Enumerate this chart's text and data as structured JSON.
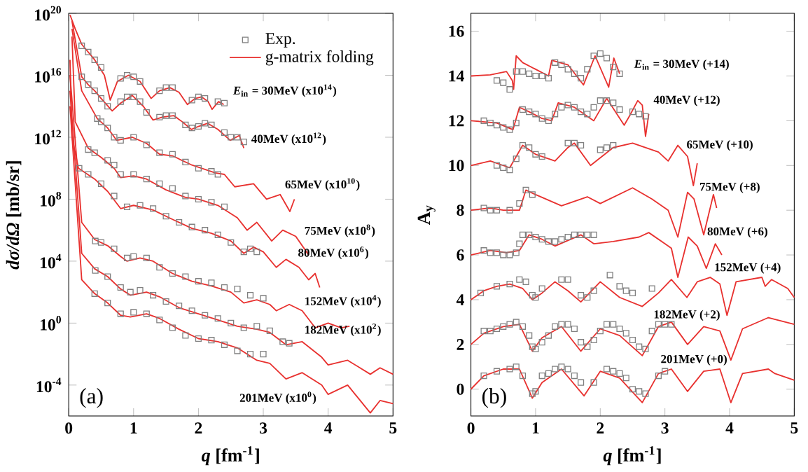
{
  "chart_data": [
    {
      "type": "line",
      "log": "y",
      "xlabel": "*q* [fm$^{-1}$]",
      "ylabel": "*dσ/dΩ* [mb/sr]",
      "xlim": [
        0,
        5
      ],
      "ylim": [
        1e-06,
        1e+20
      ],
      "xticks": [
        0,
        1,
        2,
        3,
        4,
        5
      ],
      "yticks": [
        {
          "value": 0.0001,
          "label": "10$^{-4}$"
        },
        {
          "value": 1,
          "label": "10$^{0}$"
        },
        {
          "value": 10000.0,
          "label": "10$^{4}$"
        },
        {
          "value": 100000000.0,
          "label": "10$^{8}$"
        },
        {
          "value": 1000000000000.0,
          "label": "10$^{12}$"
        },
        {
          "value": 1e+16,
          "label": "10$^{16}$"
        },
        {
          "value": 1e+20,
          "label": "10$^{20}$"
        }
      ],
      "legend": "top right",
      "series": [
        {
          "name": "Exp.",
          "type": "scatter",
          "marker": "square",
          "color": "#808080",
          "x": [
            0.2,
            0.3,
            0.4,
            0.5,
            0.8,
            0.9,
            1.0,
            1.1,
            1.4,
            1.5,
            1.6,
            1.9,
            2.0,
            2.1,
            2.3,
            2.4
          ],
          "values": [
            8e+17,
            3.2e+17,
            1e+17,
            3.2e+16,
            6300000000000000.0,
            1e+16,
            8000000000000000.0,
            4000000000000000.0,
            1000000000000000.0,
            1600000000000000.0,
            1600000000000000.0,
            250000000000000.0,
            400000000000000.0,
            320000000000000.0,
            200000000000000.0,
            160000000000000.0
          ]
        },
        {
          "name": "g-matrix folding",
          "type": "line",
          "color": "#e8312f",
          "x": [
            0.02,
            0.1,
            0.2,
            0.4,
            0.55,
            0.64,
            0.75,
            0.92,
            1.1,
            1.27,
            1.4,
            1.56,
            1.7,
            1.83,
            1.95,
            2.05,
            2.15,
            2.21,
            2.31,
            2.39
          ],
          "values": [
            8e+19,
            1e+19,
            1e+18,
            1e+17,
            1e+16,
            250000000000000.0,
            4000000000000000.0,
            1e+16,
            4000000000000000.0,
            320000000000000.0,
            1000000000000000.0,
            1600000000000000.0,
            800000000000000.0,
            130000000000000.0,
            320000000000000.0,
            400000000000000.0,
            200000000000000.0,
            63000000000000.0,
            200000000000000.0,
            130000000000000.0
          ]
        },
        {
          "type": "scatter",
          "marker": "square",
          "color": "#808080",
          "x": [
            0.2,
            0.3,
            0.4,
            0.5,
            0.6,
            0.8,
            0.9,
            1.0,
            1.1,
            1.2,
            1.4,
            1.5,
            1.6,
            1.8,
            1.9,
            2.0,
            2.1,
            2.2,
            2.4,
            2.5,
            2.6,
            2.7
          ],
          "values": [
            8000000000000000.0,
            2500000000000000.0,
            1000000000000000.0,
            320000000000000.0,
            100000000000000.0,
            200000000000000.0,
            400000000000000.0,
            400000000000000.0,
            200000000000000.0,
            40000000000000.0,
            20000000000000.0,
            25000000000000.0,
            25000000000000.0,
            6300000000000.0,
            4000000000000.0,
            5000000000000.0,
            8000000000000.0,
            6300000000000.0,
            2000000000000.0,
            1000000000000.0,
            1000000000000.0,
            500000000000.0
          ]
        },
        {
          "type": "line",
          "color": "#e8312f",
          "x": [
            0.05,
            0.2,
            0.3,
            0.4,
            0.5,
            0.67,
            0.8,
            0.98,
            1.15,
            1.3,
            1.45,
            1.62,
            1.75,
            1.89,
            2.0,
            2.14,
            2.3,
            2.49,
            2.63,
            2.7
          ],
          "values": [
            3.2e+19,
            8000000000000000.0,
            2500000000000000.0,
            1000000000000000.0,
            320000000000000.0,
            50000000000000.0,
            160000000000000.0,
            500000000000000.0,
            100000000000000.0,
            13000000000000.0,
            20000000000000.0,
            25000000000000.0,
            10000000000000.0,
            3200000000000.0,
            5000000000000.0,
            8000000000000.0,
            3200000000000.0,
            630000000000.0,
            1300000000000.0,
            200000000000.0
          ]
        },
        {
          "type": "scatter",
          "marker": "square",
          "color": "#808080",
          "x": [
            0.44,
            0.5,
            0.6,
            0.7,
            0.8,
            1.0,
            1.2,
            1.4,
            1.6,
            1.8,
            2.0,
            2.2,
            2.3
          ],
          "values": [
            16000000000000.0,
            10000000000000.0,
            4000000000000.0,
            1000000000000.0,
            630000000000.0,
            1000000000000.0,
            320000000000.0,
            100000000000.0,
            80000000000.0,
            25000000000.0,
            10000000000.0,
            6300000000.0,
            4000000000.0
          ]
        },
        {
          "type": "line",
          "color": "#e8312f",
          "x": [
            0.05,
            0.2,
            0.44,
            0.6,
            0.74,
            0.98,
            1.2,
            1.4,
            1.6,
            1.9,
            2.26,
            2.4,
            2.56,
            2.85,
            3.05,
            3.26,
            3.41,
            3.48
          ],
          "values": [
            1e+19,
            1000000000000000.0,
            16000000000000.0,
            4000000000000.0,
            630000000000.0,
            1000000000000.0,
            400000000000.0,
            80000000000.0,
            63000000000.0,
            16000000000.0,
            5000000000.0,
            4000000000.0,
            630000000.0,
            1000000000.0,
            100000000.0,
            200000000.0,
            16000000.0,
            100000000.0
          ]
        },
        {
          "type": "scatter",
          "marker": "square",
          "color": "#808080",
          "x": [
            0.3,
            0.4,
            0.6,
            0.7,
            0.8,
            1.0,
            1.2,
            1.4,
            1.6,
            1.8,
            2.0,
            2.2,
            2.4
          ],
          "values": [
            160000000000.0,
            100000000000.0,
            32000000000.0,
            16000000000.0,
            4000000000.0,
            4000000000.0,
            2000000000.0,
            1000000000.0,
            500000000.0,
            160000000.0,
            100000000.0,
            63000000.0,
            32000000.0
          ]
        },
        {
          "type": "line",
          "color": "#e8312f",
          "x": [
            0.05,
            0.1,
            0.3,
            0.5,
            0.7,
            0.8,
            1.0,
            1.2,
            1.5,
            1.8,
            2.0,
            2.3,
            2.6,
            2.75,
            2.9,
            3.13,
            3.3,
            3.5,
            3.7
          ],
          "values": [
            3.2e+18,
            10000000000000.0,
            200000000000.0,
            50000000000.0,
            10000000000.0,
            2500000000.0,
            3200000000.0,
            2000000000.0,
            400000000.0,
            130000000.0,
            100000000.0,
            40000000.0,
            6300000.0,
            1000000.0,
            3200000.0,
            200000.0,
            1000000.0,
            400000.0,
            25000.0
          ]
        },
        {
          "type": "scatter",
          "marker": "square",
          "color": "#808080",
          "x": [
            0.16,
            0.3,
            0.5,
            0.7,
            0.9,
            1.1,
            1.3,
            1.5,
            1.7,
            1.9,
            2.1,
            2.3,
            2.5,
            2.7,
            2.8,
            2.9
          ],
          "values": [
            10000000000.0,
            4000000000.0,
            1000000000.0,
            160000000.0,
            32000000.0,
            40000000.0,
            25000000.0,
            8000000.0,
            3200000.0,
            1600000.0,
            1000000.0,
            500000.0,
            160000.0,
            40000.0,
            63000.0,
            40000.0
          ]
        },
        {
          "type": "line",
          "color": "#e8312f",
          "x": [
            0.02,
            0.05,
            0.15,
            0.4,
            0.6,
            0.8,
            1.0,
            1.3,
            1.6,
            1.9,
            2.2,
            2.5,
            2.7,
            2.85,
            3.0,
            3.2,
            3.35,
            3.55,
            3.7,
            3.8,
            3.87
          ],
          "values": [
            1e+17,
            1000000000000.0,
            10000000000.0,
            2000000000.0,
            320000000.0,
            25000000.0,
            40000000.0,
            20000000.0,
            5000000.0,
            1300000.0,
            630000.0,
            200000.0,
            32000.0,
            80000.0,
            40000.0,
            4000.0,
            13000.0,
            4000.0,
            630.0,
            1600.0,
            200.0
          ]
        },
        {
          "type": "scatter",
          "marker": "square",
          "color": "#808080",
          "x": [
            0.41,
            0.5,
            0.7,
            0.9,
            1.0,
            1.2,
            1.4,
            1.6,
            1.8,
            2.0,
            2.2,
            2.4,
            2.6,
            2.8,
            3.0
          ],
          "values": [
            200000.0,
            160000.0,
            63000.0,
            16000.0,
            20000.0,
            16000.0,
            4000.0,
            1600.0,
            1000.0,
            500.0,
            400.0,
            200.0,
            160.0,
            63.0,
            40.0
          ]
        },
        {
          "type": "line",
          "color": "#e8312f",
          "x": [
            0.02,
            0.2,
            0.4,
            0.6,
            0.8,
            0.9,
            1.1,
            1.3,
            1.6,
            1.9,
            2.2,
            2.5,
            2.7,
            2.9,
            3.1,
            3.2,
            3.4,
            3.6,
            3.8,
            4.0,
            4.2,
            4.33
          ],
          "values": [
            1e+16,
            3200000.0,
            250000.0,
            100000.0,
            20000.0,
            10000.0,
            16000.0,
            10000.0,
            1600.0,
            500.0,
            250.0,
            100.0,
            20.0,
            32.0,
            16.0,
            6.3,
            16.0,
            6.3,
            0.5,
            1,
            0.5,
            0.63
          ]
        },
        {
          "type": "scatter",
          "marker": "square",
          "color": "#808080",
          "x": [
            0.41,
            0.6,
            0.8,
            0.95,
            1.1,
            1.3,
            1.5,
            1.7,
            1.9,
            2.1,
            2.3,
            2.5,
            2.7,
            2.9,
            3.1,
            3.3,
            3.4
          ],
          "values": [
            2500.0,
            1000.0,
            200.0,
            100.0,
            130.0,
            63.0,
            25.0,
            13.0,
            6.3,
            3.2,
            2,
            1,
            0.5,
            0.63,
            0.32,
            0.063,
            0.05
          ]
        },
        {
          "type": "line",
          "color": "#e8312f",
          "x": [
            0.02,
            0.2,
            0.4,
            0.6,
            0.8,
            0.95,
            1.2,
            1.4,
            1.7,
            2.0,
            2.3,
            2.6,
            2.9,
            3.1,
            3.35,
            3.6,
            3.9,
            4.0,
            4.3,
            4.65,
            4.8,
            5.0
          ],
          "values": [
            1000000000000000.0,
            32000.0,
            3200.0,
            1000.0,
            160.0,
            63.0,
            100.0,
            50.0,
            10.0,
            4,
            1.6,
            0.63,
            0.4,
            0.25,
            0.04,
            0.063,
            0.0063,
            0.002,
            0.004,
            0.0005,
            0.0013,
            0.0005
          ]
        },
        {
          "type": "scatter",
          "marker": "square",
          "color": "#808080",
          "x": [
            0.4,
            0.6,
            0.8,
            1.0,
            1.2,
            1.4,
            1.6,
            1.8,
            2.0,
            2.2,
            2.4,
            2.6,
            2.8,
            3.0
          ],
          "values": [
            80.0,
            20.0,
            4,
            5,
            4,
            1.6,
            0.5,
            0.16,
            0.1,
            0.08,
            0.04,
            0.016,
            0.01,
            0.01
          ]
        },
        {
          "type": "line",
          "color": "#e8312f",
          "x": [
            0.02,
            0.2,
            0.4,
            0.6,
            0.8,
            0.95,
            1.2,
            1.4,
            1.7,
            2.0,
            2.3,
            2.6,
            2.9,
            3.1,
            3.35,
            3.6,
            3.9,
            4.0,
            4.3,
            4.65,
            4.8,
            5.0
          ],
          "values": [
            100000000000000.0,
            630.0,
            80.0,
            20.0,
            3.2,
            2.5,
            4,
            2,
            0.4,
            0.1,
            0.063,
            0.025,
            0.004,
            0.0025,
            0.00025,
            0.00063,
            0.0001,
            2.5e-05,
            0.0001,
            1.6e-06,
            1e-05,
            6.3e-06
          ]
        }
      ],
      "annotations": [
        "*E*$_{in}$ = 30MeV (x10$^{14}$)",
        "40MeV (x10$^{12}$)",
        "65MeV (x10$^{10}$)",
        "75MeV (x10$^{8}$)",
        "80MeV (x10$^{6}$)",
        "152MeV (x10$^{4}$)",
        "182MeV (x10$^{2}$)",
        "201MeV (x10$^{0}$)",
        "(a)"
      ]
    },
    {
      "type": "line",
      "xlabel": "*q* [fm$^{-1}$]",
      "ylabel": "A$_{y}$",
      "xlim": [
        0,
        5
      ],
      "ylim": [
        -1.2,
        16.8
      ],
      "xticks": [
        0,
        1,
        2,
        3,
        4,
        5
      ],
      "yticks": [
        0,
        2,
        4,
        6,
        8,
        10,
        12,
        14,
        16
      ],
      "series": [
        {
          "type": "scatter",
          "marker": "square",
          "color": "#808080",
          "x": [
            0.4,
            0.5,
            0.6,
            0.7,
            0.8,
            0.9,
            1.0,
            1.1,
            1.2,
            1.3,
            1.4,
            1.5,
            1.6,
            1.7,
            1.8,
            1.9,
            2.0,
            2.1,
            2.2,
            2.3
          ],
          "values": [
            13.8,
            13.7,
            13.4,
            14.2,
            14.2,
            14.1,
            14.0,
            14.0,
            13.9,
            14.6,
            14.5,
            14.3,
            14.1,
            13.9,
            14.3,
            14.9,
            15.0,
            14.8,
            14.4,
            14.1
          ]
        },
        {
          "type": "line",
          "color": "#e8312f",
          "x": [
            0,
            0.3,
            0.55,
            0.64,
            0.66,
            0.7,
            0.8,
            1.0,
            1.2,
            1.25,
            1.5,
            1.74,
            1.92,
            2.13,
            2.21,
            2.3
          ],
          "values": [
            14.0,
            14.05,
            14.2,
            13.8,
            13.4,
            14.9,
            14.6,
            14.3,
            14.0,
            14.7,
            14.5,
            13.6,
            14.9,
            13.5,
            14.8,
            14.1
          ]
        },
        {
          "type": "scatter",
          "marker": "square",
          "color": "#808080",
          "x": [
            0.2,
            0.3,
            0.4,
            0.5,
            0.6,
            0.7,
            0.8,
            0.9,
            1.0,
            1.1,
            1.2,
            1.3,
            1.4,
            1.5,
            1.6,
            1.7,
            1.8,
            1.9,
            2.0,
            2.1,
            2.2,
            2.3,
            2.5,
            2.6,
            2.7
          ],
          "values": [
            12.0,
            11.9,
            11.8,
            11.7,
            11.6,
            11.9,
            12.5,
            12.4,
            12.3,
            12.1,
            12.0,
            12.3,
            12.6,
            12.7,
            12.6,
            12.4,
            12.3,
            12.6,
            12.9,
            12.9,
            12.8,
            12.5,
            12.4,
            12.3,
            12.2
          ]
        },
        {
          "type": "line",
          "color": "#e8312f",
          "x": [
            0,
            0.4,
            0.65,
            0.75,
            0.9,
            1.1,
            1.25,
            1.35,
            1.6,
            1.9,
            2.1,
            2.37,
            2.45,
            2.58,
            2.65,
            2.7,
            2.75
          ],
          "values": [
            12.0,
            11.9,
            11.6,
            12.6,
            12.4,
            12.1,
            12.0,
            12.8,
            12.6,
            12.0,
            13.0,
            11.8,
            12.2,
            12.9,
            12.7,
            11.3,
            12.3
          ]
        },
        {
          "type": "scatter",
          "marker": "square",
          "color": "#808080",
          "x": [
            0.4,
            0.5,
            0.6,
            0.7,
            0.8,
            0.9,
            1.0,
            1.1,
            1.5,
            1.6,
            1.7,
            2.0,
            2.1,
            2.2
          ],
          "values": [
            10.0,
            9.9,
            9.8,
            10.3,
            10.9,
            10.8,
            10.5,
            10.4,
            11.0,
            11.0,
            10.9,
            10.7,
            10.8,
            10.9
          ]
        },
        {
          "type": "line",
          "color": "#e8312f",
          "x": [
            0,
            0.3,
            0.6,
            0.8,
            1.0,
            1.3,
            1.5,
            1.6,
            1.85,
            2.2,
            2.5,
            2.9,
            3.05,
            3.2,
            3.35,
            3.44,
            3.5
          ],
          "values": [
            10.0,
            10.2,
            9.9,
            10.9,
            10.5,
            10.2,
            10.8,
            11.0,
            10.0,
            10.8,
            11.0,
            10.6,
            10.2,
            10.9,
            10.4,
            9.1,
            10.1
          ]
        },
        {
          "type": "scatter",
          "marker": "square",
          "color": "#808080",
          "x": [
            0.2,
            0.3,
            0.4,
            0.6,
            0.75,
            0.85,
            0.95
          ],
          "values": [
            8.1,
            8.0,
            8.0,
            8.0,
            8.3,
            8.9,
            8.7
          ]
        },
        {
          "type": "line",
          "color": "#e8312f",
          "x": [
            0,
            0.3,
            0.5,
            0.75,
            0.85,
            1.0,
            1.4,
            1.8,
            2.0,
            2.5,
            2.8,
            3.05,
            3.2,
            3.35,
            3.45,
            3.6,
            3.75,
            3.8
          ],
          "values": [
            8.0,
            8.1,
            8.0,
            8.0,
            8.9,
            8.7,
            8.2,
            8.6,
            8.3,
            9.0,
            8.5,
            8.0,
            6.8,
            8.8,
            8.5,
            6.9,
            8.7,
            8.1
          ]
        },
        {
          "type": "scatter",
          "marker": "square",
          "color": "#808080",
          "x": [
            0.2,
            0.3,
            0.4,
            0.5,
            0.6,
            0.7,
            0.75,
            0.8,
            0.9,
            1.0,
            1.1,
            1.2,
            1.3,
            1.4,
            1.5,
            1.6,
            1.7,
            1.8,
            1.9
          ],
          "values": [
            6.2,
            6.1,
            6.1,
            6.0,
            6.0,
            6.1,
            6.5,
            6.9,
            6.9,
            6.8,
            6.7,
            6.6,
            6.6,
            6.7,
            6.8,
            6.9,
            6.9,
            6.9,
            6.9
          ]
        },
        {
          "type": "line",
          "color": "#e8312f",
          "x": [
            0,
            0.3,
            0.55,
            0.75,
            0.9,
            1.1,
            1.3,
            1.7,
            1.9,
            2.2,
            2.6,
            2.75,
            3.0,
            3.1,
            3.2,
            3.36,
            3.5,
            3.64,
            3.78,
            3.88
          ],
          "values": [
            6.0,
            6.2,
            6.1,
            6.2,
            6.9,
            6.7,
            6.4,
            6.9,
            6.5,
            6.6,
            6.8,
            7.0,
            6.5,
            6.3,
            5.0,
            6.8,
            6.4,
            5.4,
            6.5,
            6.0
          ]
        },
        {
          "type": "scatter",
          "marker": "square",
          "color": "#808080",
          "x": [
            0.15,
            0.4,
            0.6,
            0.75,
            0.85,
            0.95,
            1.0,
            1.1,
            1.4,
            1.5,
            1.7,
            1.8,
            1.9,
            2.15,
            2.3,
            2.4,
            2.5,
            2.8
          ],
          "values": [
            4.3,
            4.6,
            4.7,
            4.9,
            4.8,
            4.2,
            4.1,
            4.5,
            4.9,
            4.9,
            4.2,
            4.1,
            4.4,
            5.1,
            4.6,
            4.4,
            4.3,
            4.5
          ]
        },
        {
          "type": "line",
          "color": "#e8312f",
          "x": [
            0,
            0.2,
            0.4,
            0.6,
            0.8,
            0.95,
            1.1,
            1.3,
            1.5,
            1.7,
            2.0,
            2.3,
            2.65,
            2.9,
            3.1,
            3.34,
            3.5,
            3.7,
            3.85,
            3.96,
            4.1,
            4.5,
            4.55,
            4.65,
            4.9,
            5.0
          ],
          "values": [
            4.0,
            4.4,
            4.6,
            4.7,
            4.5,
            4.0,
            4.3,
            4.8,
            4.4,
            3.9,
            4.8,
            4.1,
            3.7,
            4.3,
            4.9,
            4.1,
            4.8,
            5.0,
            4.7,
            3.3,
            4.8,
            5.0,
            4.6,
            4.9,
            4.5,
            4.1
          ]
        },
        {
          "type": "scatter",
          "marker": "square",
          "color": "#808080",
          "x": [
            0.2,
            0.3,
            0.4,
            0.5,
            0.6,
            0.7,
            0.8,
            0.9,
            0.95,
            1.0,
            1.1,
            1.2,
            1.3,
            1.4,
            1.5,
            1.6,
            1.7,
            1.8,
            1.9,
            2.0,
            2.1,
            2.2,
            2.3,
            2.4,
            2.5,
            2.6,
            2.7,
            2.8,
            2.9,
            3.0,
            3.1
          ],
          "values": [
            2.6,
            2.6,
            2.7,
            2.8,
            2.9,
            3.0,
            2.8,
            2.4,
            1.9,
            1.8,
            2.1,
            2.4,
            2.8,
            2.9,
            2.9,
            2.7,
            2.1,
            1.9,
            2.2,
            2.6,
            2.9,
            2.9,
            2.7,
            2.5,
            2.2,
            1.9,
            1.8,
            2.6,
            2.9,
            2.9,
            2.9
          ]
        },
        {
          "type": "line",
          "color": "#e8312f",
          "x": [
            0,
            0.2,
            0.5,
            0.75,
            0.95,
            1.1,
            1.4,
            1.7,
            2.0,
            2.3,
            2.65,
            2.9,
            3.1,
            3.35,
            3.6,
            3.85,
            4.02,
            4.2,
            4.6,
            5.0
          ],
          "values": [
            2.0,
            2.5,
            2.8,
            2.9,
            1.7,
            2.3,
            2.8,
            1.7,
            2.7,
            2.4,
            1.5,
            2.8,
            3.0,
            2.0,
            2.8,
            2.6,
            1.3,
            2.7,
            3.2,
            2.9
          ]
        },
        {
          "type": "scatter",
          "marker": "square",
          "color": "#808080",
          "x": [
            0.2,
            0.4,
            0.6,
            0.7,
            0.8,
            0.95,
            1.0,
            1.1,
            1.2,
            1.3,
            1.4,
            1.5,
            1.6,
            1.7,
            1.9,
            2.1,
            2.2,
            2.3,
            2.4,
            2.5,
            2.6,
            2.7,
            2.9,
            3.0
          ],
          "values": [
            0.6,
            0.8,
            0.9,
            1.0,
            0.6,
            -0.2,
            -0.1,
            0.6,
            0.7,
            0.9,
            1.0,
            0.9,
            0.6,
            0.3,
            0.3,
            0.9,
            0.8,
            0.7,
            0.5,
            0.0,
            -0.1,
            -0.2,
            0.6,
            0.8
          ]
        },
        {
          "type": "line",
          "color": "#e8312f",
          "x": [
            0,
            0.2,
            0.5,
            0.75,
            0.95,
            1.1,
            1.4,
            1.75,
            2.0,
            2.3,
            2.65,
            2.9,
            3.1,
            3.35,
            3.6,
            3.85,
            4.02,
            4.2,
            4.6,
            4.7,
            5.0
          ],
          "values": [
            0.0,
            0.6,
            0.9,
            0.9,
            -0.4,
            0.3,
            0.9,
            -0.3,
            0.8,
            0.5,
            -0.6,
            0.7,
            0.9,
            -0.1,
            0.8,
            0.9,
            -0.6,
            0.7,
            0.9,
            0.7,
            0.4
          ]
        }
      ],
      "annotations": [
        "*E*$_{in}$ = 30MeV (+14)",
        "40MeV (+12)",
        "65MeV (+10)",
        "75MeV (+8)",
        "80MeV (+6)",
        "152MeV (+4)",
        "182MeV (+2)",
        "201MeV (+0)",
        "(b)"
      ]
    }
  ]
}
